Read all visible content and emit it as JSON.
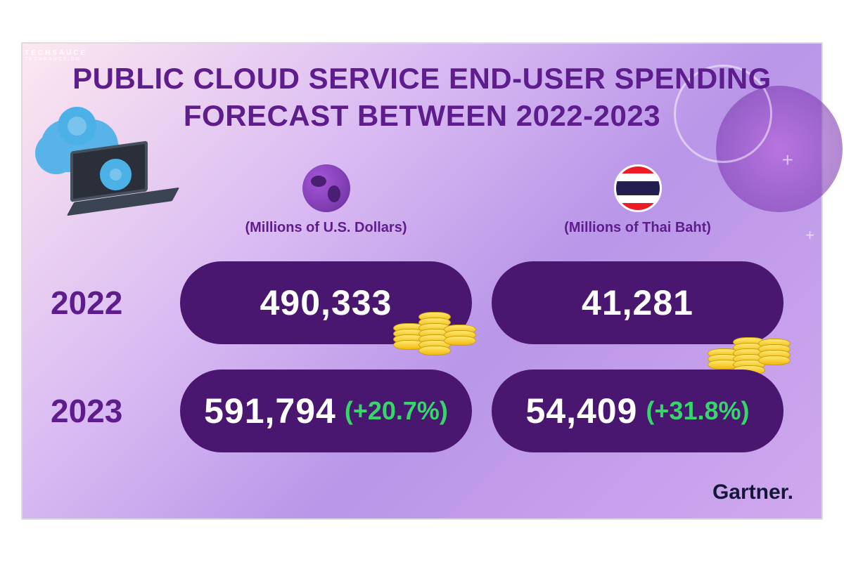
{
  "watermark": {
    "brand": "TECHSAUCE",
    "sub": "TECHSAUCE.CO"
  },
  "title_line1": "PUBLIC CLOUD SERVICE END-USER SPENDING",
  "title_line2": "FORECAST BETWEEN 2022-2023",
  "columns": {
    "global": {
      "caption": "(Millions of U.S. Dollars)"
    },
    "thailand": {
      "caption": "(Millions of Thai Baht)"
    }
  },
  "rows": [
    {
      "year": "2022",
      "global": {
        "value": "490,333",
        "delta": ""
      },
      "thailand": {
        "value": "41,281",
        "delta": ""
      }
    },
    {
      "year": "2023",
      "global": {
        "value": "591,794",
        "delta": "(+20.7%)"
      },
      "thailand": {
        "value": "54,409",
        "delta": "(+31.8%)"
      }
    }
  ],
  "source": "Gartner.",
  "style": {
    "title_color": "#5e1d8c",
    "title_fontsize": 42,
    "pill_bg": "#4a1770",
    "pill_radius": 70,
    "value_color": "#ffffff",
    "value_fontsize": 50,
    "delta_color": "#37d66a",
    "delta_fontsize": 36,
    "year_fontsize": 46,
    "caption_fontsize": 20,
    "bg_gradient": [
      "#fce8f0",
      "#d9b9f2",
      "#b996e8",
      "#d0a8ef"
    ],
    "coin_colors": [
      "#ffe873",
      "#f2b90c"
    ],
    "flag_colors": {
      "red": "#ed1c24",
      "white": "#ffffff",
      "blue": "#241d4f"
    }
  }
}
